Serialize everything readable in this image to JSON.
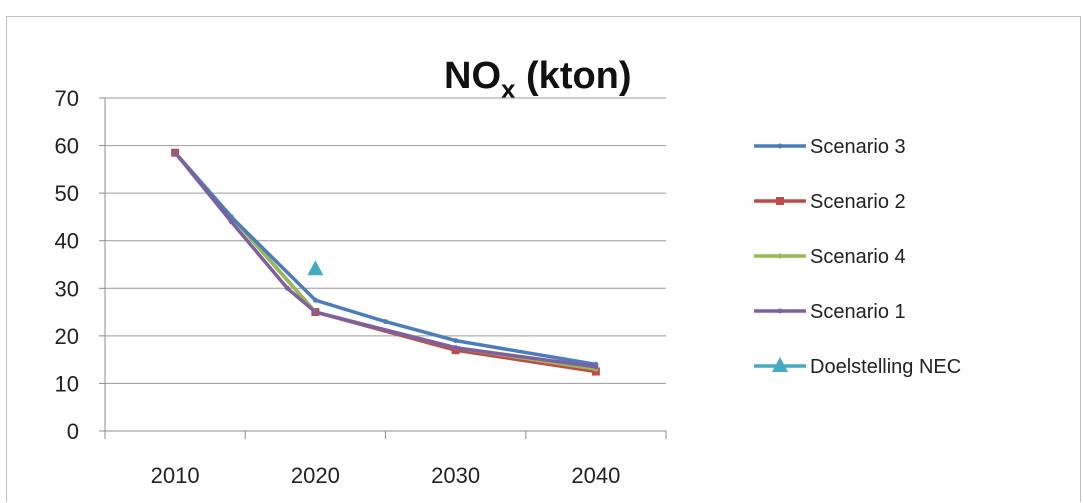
{
  "chart_data": {
    "type": "line",
    "title": "NO",
    "title_subscript": "x",
    "title_suffix": " (kton)",
    "xlabel": "",
    "ylabel": "",
    "ylim": [
      0,
      70
    ],
    "yticks": [
      0,
      10,
      20,
      30,
      40,
      50,
      60,
      70
    ],
    "xlim": [
      2005,
      2045
    ],
    "xticks": [
      2010,
      2020,
      2030,
      2040
    ],
    "grid": true,
    "legend_position": "right",
    "series": [
      {
        "name": "Scenario 3",
        "color": "#4a7ebb",
        "marker": "dot",
        "x": [
          2010,
          2014,
          2020,
          2025,
          2030,
          2040
        ],
        "y": [
          58.5,
          45,
          27.5,
          23,
          19,
          14
        ]
      },
      {
        "name": "Scenario 2",
        "color": "#be4b48",
        "marker": "square",
        "x": [
          2010,
          2020,
          2030,
          2040
        ],
        "y": [
          58.5,
          25,
          17,
          12.5
        ]
      },
      {
        "name": "Scenario 4",
        "color": "#98b954",
        "marker": "dot",
        "x": [
          2010,
          2020,
          2030,
          2040
        ],
        "y": [
          58.5,
          25,
          17.5,
          13
        ]
      },
      {
        "name": "Scenario 1",
        "color": "#7d60a0",
        "marker": "dot",
        "x": [
          2010,
          2014,
          2018,
          2020,
          2030,
          2040
        ],
        "y": [
          58.5,
          44,
          30,
          25,
          17.5,
          13.5
        ]
      },
      {
        "name": "Doelstelling NEC",
        "color": "#46aac5",
        "marker": "triangle",
        "x": [
          2020
        ],
        "y": [
          34
        ]
      }
    ]
  }
}
